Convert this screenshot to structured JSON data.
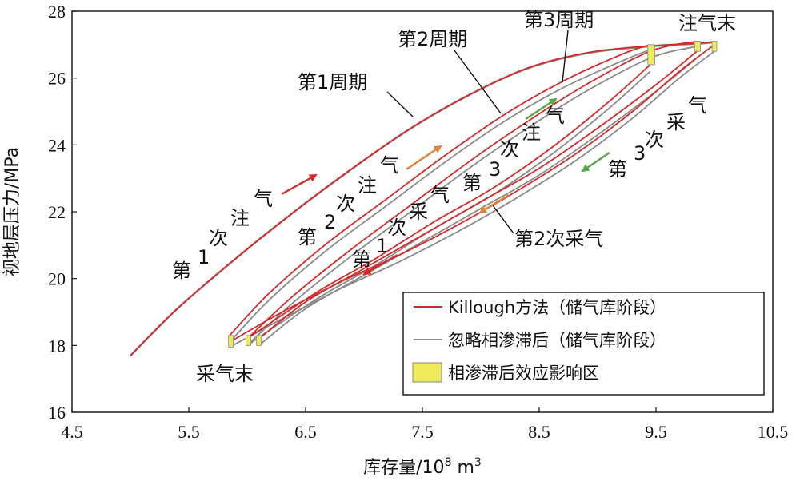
{
  "chart_data": {
    "type": "line",
    "xlabel_main": "库存量/10",
    "xlabel_sup": "8",
    "xlabel_unit": " m",
    "xlabel_unit_sup": "3",
    "ylabel": "视地层压力/MPa",
    "xlim": [
      4.5,
      10.5
    ],
    "ylim": [
      16,
      28
    ],
    "xticks": [
      "4.5",
      "5.5",
      "6.5",
      "7.5",
      "8.5",
      "9.5",
      "10.5"
    ],
    "xtick_values": [
      4.5,
      5.5,
      6.5,
      7.5,
      8.5,
      9.5,
      10.5
    ],
    "yticks": [
      "16",
      "18",
      "20",
      "22",
      "24",
      "26",
      "28"
    ],
    "ytick_values": [
      16,
      18,
      20,
      22,
      24,
      26,
      28
    ],
    "grid": false,
    "legend_position": "bottom-right",
    "colors": {
      "killough": "#d42a2a",
      "ignore": "#8a8a8a",
      "zone_fill": "#eeec5a",
      "zone_edge": "#9a9a9a",
      "arrow_red": "#d42a2a",
      "arrow_orange": "#e0823a",
      "arrow_green": "#5aa64a"
    },
    "series": [
      {
        "name": "Killough方法（储气库阶段）",
        "color": "#d42a2a",
        "segments": [
          {
            "x": [
              5.0,
              5.4,
              5.9,
              6.4,
              6.9,
              7.4,
              7.9,
              8.4,
              8.9,
              9.4,
              9.9,
              10.0
            ],
            "y": [
              17.7,
              19.1,
              20.6,
              22.0,
              23.3,
              24.5,
              25.5,
              26.3,
              26.75,
              26.95,
              27.05,
              27.1
            ]
          },
          {
            "x": [
              10.0,
              9.7,
              9.3,
              8.8,
              8.3,
              7.8,
              7.3,
              6.8,
              6.3,
              5.85
            ],
            "y": [
              27.0,
              26.2,
              25.0,
              23.7,
              22.6,
              21.6,
              20.7,
              19.9,
              19.0,
              18.1
            ]
          },
          {
            "x": [
              5.85,
              6.2,
              6.7,
              7.2,
              7.7,
              8.2,
              8.7,
              9.2,
              9.45
            ],
            "y": [
              18.3,
              19.6,
              21.1,
              22.4,
              23.7,
              24.9,
              25.9,
              26.7,
              27.0
            ]
          },
          {
            "x": [
              9.45,
              9.1,
              8.6,
              8.1,
              7.6,
              7.1,
              6.6,
              6.0
            ],
            "y": [
              26.4,
              25.3,
              23.9,
              22.7,
              21.7,
              20.6,
              19.6,
              18.2
            ]
          },
          {
            "x": [
              6.0,
              6.4,
              6.9,
              7.4,
              7.9,
              8.4,
              8.9,
              9.45,
              9.85
            ],
            "y": [
              18.2,
              19.5,
              20.9,
              22.2,
              23.5,
              24.7,
              25.8,
              26.8,
              27.1
            ]
          },
          {
            "x": [
              9.85,
              9.5,
              9.0,
              8.5,
              8.0,
              7.5,
              7.0,
              6.5,
              6.1
            ],
            "y": [
              26.8,
              25.8,
              24.5,
              23.3,
              22.3,
              21.3,
              20.3,
              19.3,
              18.2
            ]
          }
        ]
      },
      {
        "name": "忽略相渗滞后（储气库阶段）",
        "color": "#8a8a8a",
        "segments": [
          {
            "x": [
              5.0,
              5.4,
              5.9,
              6.4,
              6.9,
              7.4,
              7.9,
              8.4,
              8.9,
              9.4,
              9.9,
              10.0
            ],
            "y": [
              17.68,
              19.08,
              20.58,
              21.98,
              23.28,
              24.48,
              25.48,
              26.28,
              26.73,
              26.93,
              27.03,
              27.08
            ]
          },
          {
            "x": [
              10.0,
              9.7,
              9.3,
              8.8,
              8.3,
              7.8,
              7.3,
              6.8,
              6.3,
              5.85
            ],
            "y": [
              26.8,
              26.0,
              24.8,
              23.5,
              22.4,
              21.4,
              20.5,
              19.7,
              18.8,
              17.95
            ]
          },
          {
            "x": [
              5.85,
              6.2,
              6.7,
              7.2,
              7.7,
              8.2,
              8.7,
              9.2,
              9.45
            ],
            "y": [
              18.1,
              19.4,
              20.9,
              22.2,
              23.5,
              24.7,
              25.7,
              26.5,
              26.85
            ]
          },
          {
            "x": [
              9.45,
              9.1,
              8.6,
              8.1,
              7.6,
              7.1,
              6.6,
              6.0
            ],
            "y": [
              26.2,
              25.1,
              23.7,
              22.5,
              21.5,
              20.4,
              19.4,
              18.0
            ]
          },
          {
            "x": [
              6.0,
              6.4,
              6.9,
              7.4,
              7.9,
              8.4,
              8.9,
              9.45,
              9.85
            ],
            "y": [
              18.0,
              19.3,
              20.7,
              22.0,
              23.3,
              24.5,
              25.6,
              26.6,
              26.95
            ]
          },
          {
            "x": [
              9.85,
              9.5,
              9.0,
              8.5,
              8.0,
              7.5,
              7.0,
              6.5,
              6.1
            ],
            "y": [
              26.6,
              25.6,
              24.3,
              23.1,
              22.1,
              21.1,
              20.1,
              19.1,
              18.0
            ]
          }
        ]
      }
    ],
    "hysteresis_zones": [
      {
        "x": [
          9.43,
          9.49
        ],
        "y": [
          26.4,
          27.0
        ]
      },
      {
        "x": [
          9.83,
          9.88
        ],
        "y": [
          26.8,
          27.1
        ]
      },
      {
        "x": [
          9.98,
          10.02
        ],
        "y": [
          26.8,
          27.1
        ]
      },
      {
        "x": [
          5.84,
          5.88
        ],
        "y": [
          17.95,
          18.3
        ]
      },
      {
        "x": [
          5.99,
          6.03
        ],
        "y": [
          18.0,
          18.3
        ]
      },
      {
        "x": [
          6.08,
          6.12
        ],
        "y": [
          18.0,
          18.3
        ]
      }
    ],
    "legend": [
      {
        "label": "Killough方法（储气库阶段）",
        "kind": "line",
        "color": "#d42a2a"
      },
      {
        "label": "忽略相渗滞后（储气库阶段）",
        "kind": "line",
        "color": "#8a8a8a"
      },
      {
        "label": "相渗滞后效应影响区",
        "kind": "patch",
        "color": "#eeec5a"
      }
    ],
    "annotations": {
      "cycle1": "第1周期",
      "cycle2": "第2周期",
      "cycle3": "第3周期",
      "inj_end": "注气末",
      "prod_end": "采气末",
      "prod2": "第2次采气",
      "inj1": [
        "第",
        "1",
        "次",
        "注",
        "气"
      ],
      "inj2": [
        "第",
        "2",
        "次",
        "注",
        "气"
      ],
      "inj3": [
        "第",
        "3",
        "次",
        "注",
        "气"
      ],
      "prod1": [
        "第",
        "1",
        "次",
        "采",
        "气"
      ],
      "prod3": [
        "第",
        "3",
        "次",
        "采",
        "气"
      ]
    }
  }
}
